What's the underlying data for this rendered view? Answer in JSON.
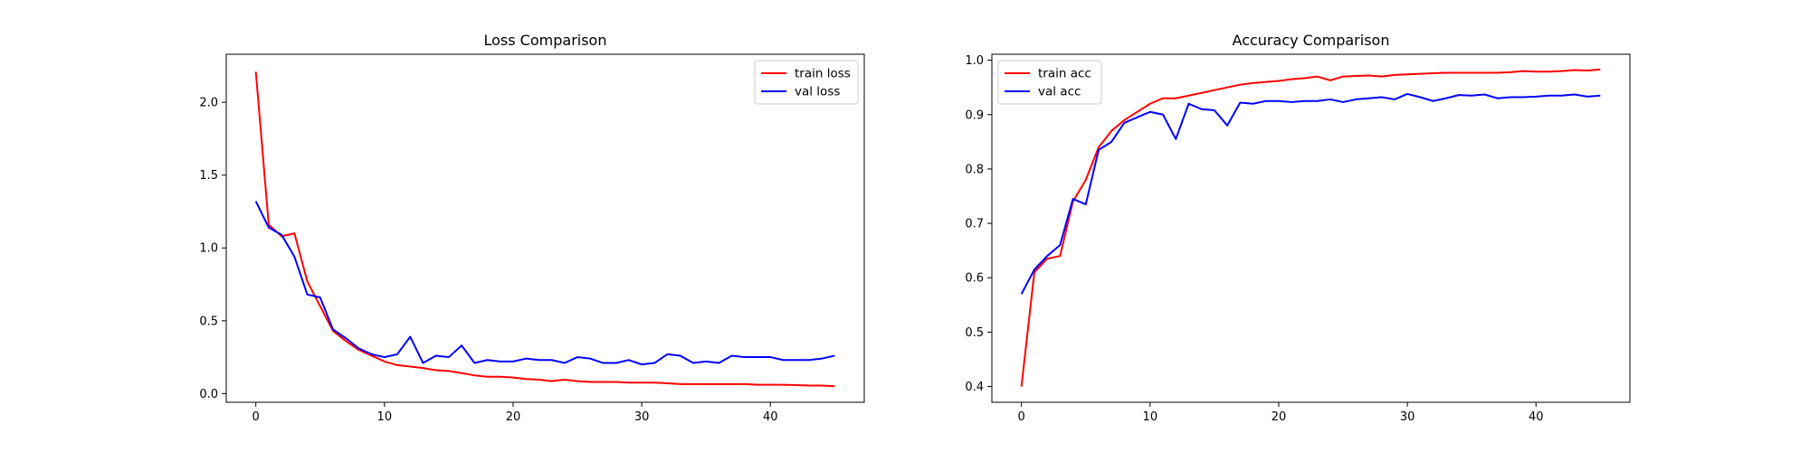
{
  "chart_data": [
    {
      "type": "line",
      "title": "Loss Comparison",
      "xlabel": "",
      "ylabel": "",
      "xlim": [
        -2.3,
        47.3
      ],
      "ylim": [
        -0.06,
        2.33
      ],
      "xticks": [
        0,
        10,
        20,
        30,
        40
      ],
      "yticks": [
        0.0,
        0.5,
        1.0,
        1.5,
        2.0
      ],
      "xtick_labels": [
        "0",
        "10",
        "20",
        "30",
        "40"
      ],
      "ytick_labels": [
        "0.0",
        "0.5",
        "1.0",
        "1.5",
        "2.0"
      ],
      "grid": false,
      "legend_position": "top-right",
      "x": [
        0,
        1,
        2,
        3,
        4,
        5,
        6,
        7,
        8,
        9,
        10,
        11,
        12,
        13,
        14,
        15,
        16,
        17,
        18,
        19,
        20,
        21,
        22,
        23,
        24,
        25,
        26,
        27,
        28,
        29,
        30,
        31,
        32,
        33,
        34,
        35,
        36,
        37,
        38,
        39,
        40,
        41,
        42,
        43,
        44,
        45
      ],
      "series": [
        {
          "name": "train loss",
          "color": "#ff0000",
          "values": [
            2.21,
            1.16,
            1.08,
            1.1,
            0.77,
            0.6,
            0.43,
            0.36,
            0.3,
            0.26,
            0.22,
            0.195,
            0.185,
            0.175,
            0.16,
            0.155,
            0.14,
            0.125,
            0.115,
            0.115,
            0.11,
            0.1,
            0.095,
            0.085,
            0.095,
            0.085,
            0.08,
            0.08,
            0.08,
            0.075,
            0.075,
            0.075,
            0.07,
            0.065,
            0.065,
            0.065,
            0.065,
            0.065,
            0.065,
            0.06,
            0.06,
            0.06,
            0.058,
            0.055,
            0.055,
            0.05
          ]
        },
        {
          "name": "val loss",
          "color": "#0000ff",
          "values": [
            1.32,
            1.14,
            1.09,
            0.94,
            0.68,
            0.66,
            0.44,
            0.38,
            0.31,
            0.27,
            0.25,
            0.27,
            0.39,
            0.21,
            0.26,
            0.25,
            0.33,
            0.21,
            0.23,
            0.22,
            0.22,
            0.24,
            0.23,
            0.23,
            0.21,
            0.25,
            0.24,
            0.21,
            0.21,
            0.23,
            0.2,
            0.21,
            0.27,
            0.26,
            0.21,
            0.22,
            0.21,
            0.26,
            0.25,
            0.25,
            0.25,
            0.23,
            0.23,
            0.23,
            0.24,
            0.26
          ]
        }
      ]
    },
    {
      "type": "line",
      "title": "Accuracy Comparison",
      "xlabel": "",
      "ylabel": "",
      "xlim": [
        -2.3,
        47.3
      ],
      "ylim": [
        0.371,
        1.011
      ],
      "xticks": [
        0,
        10,
        20,
        30,
        40
      ],
      "yticks": [
        0.4,
        0.5,
        0.6,
        0.7,
        0.8,
        0.9,
        1.0
      ],
      "xtick_labels": [
        "0",
        "10",
        "20",
        "30",
        "40"
      ],
      "ytick_labels": [
        "0.4",
        "0.5",
        "0.6",
        "0.7",
        "0.8",
        "0.9",
        "1.0"
      ],
      "grid": false,
      "legend_position": "top-left",
      "x": [
        0,
        1,
        2,
        3,
        4,
        5,
        6,
        7,
        8,
        9,
        10,
        11,
        12,
        13,
        14,
        15,
        16,
        17,
        18,
        19,
        20,
        21,
        22,
        23,
        24,
        25,
        26,
        27,
        28,
        29,
        30,
        31,
        32,
        33,
        34,
        35,
        36,
        37,
        38,
        39,
        40,
        41,
        42,
        43,
        44,
        45
      ],
      "series": [
        {
          "name": "train acc",
          "color": "#ff0000",
          "values": [
            0.4,
            0.61,
            0.635,
            0.64,
            0.74,
            0.78,
            0.84,
            0.87,
            0.89,
            0.905,
            0.92,
            0.93,
            0.93,
            0.935,
            0.94,
            0.945,
            0.95,
            0.955,
            0.958,
            0.96,
            0.962,
            0.965,
            0.967,
            0.97,
            0.963,
            0.97,
            0.971,
            0.972,
            0.97,
            0.973,
            0.974,
            0.975,
            0.976,
            0.977,
            0.977,
            0.977,
            0.977,
            0.977,
            0.978,
            0.98,
            0.979,
            0.979,
            0.98,
            0.982,
            0.981,
            0.983
          ]
        },
        {
          "name": "val acc",
          "color": "#0000ff",
          "values": [
            0.57,
            0.615,
            0.64,
            0.66,
            0.745,
            0.735,
            0.835,
            0.85,
            0.885,
            0.895,
            0.905,
            0.9,
            0.855,
            0.92,
            0.91,
            0.908,
            0.88,
            0.922,
            0.92,
            0.925,
            0.925,
            0.923,
            0.925,
            0.925,
            0.928,
            0.923,
            0.928,
            0.93,
            0.932,
            0.928,
            0.938,
            0.932,
            0.925,
            0.93,
            0.936,
            0.935,
            0.937,
            0.93,
            0.932,
            0.932,
            0.933,
            0.935,
            0.935,
            0.937,
            0.933,
            0.935
          ]
        }
      ]
    }
  ]
}
